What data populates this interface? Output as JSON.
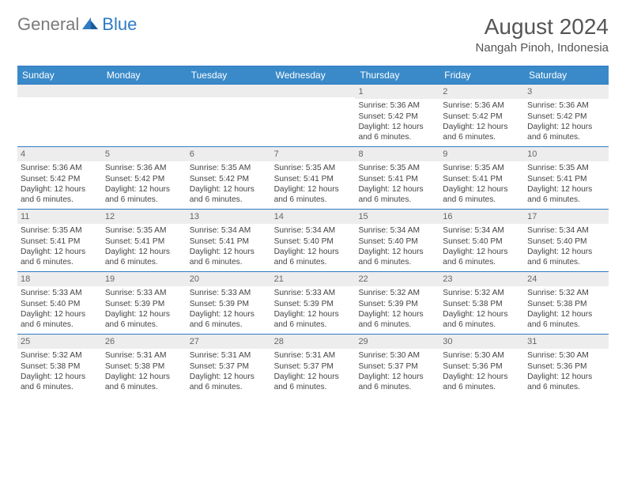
{
  "logo": {
    "text_general": "General",
    "text_blue": "Blue"
  },
  "header": {
    "month_title": "August 2024",
    "location": "Nangah Pinoh, Indonesia"
  },
  "colors": {
    "accent": "#3a8ac9",
    "accent_border": "#2f7bc4",
    "daynum_bg": "#ededed",
    "text": "#444444"
  },
  "weekdays": [
    "Sunday",
    "Monday",
    "Tuesday",
    "Wednesday",
    "Thursday",
    "Friday",
    "Saturday"
  ],
  "first_weekday_index": 4,
  "days": [
    {
      "n": "1",
      "sunrise": "5:36 AM",
      "sunset": "5:42 PM",
      "daylight": "12 hours and 6 minutes."
    },
    {
      "n": "2",
      "sunrise": "5:36 AM",
      "sunset": "5:42 PM",
      "daylight": "12 hours and 6 minutes."
    },
    {
      "n": "3",
      "sunrise": "5:36 AM",
      "sunset": "5:42 PM",
      "daylight": "12 hours and 6 minutes."
    },
    {
      "n": "4",
      "sunrise": "5:36 AM",
      "sunset": "5:42 PM",
      "daylight": "12 hours and 6 minutes."
    },
    {
      "n": "5",
      "sunrise": "5:36 AM",
      "sunset": "5:42 PM",
      "daylight": "12 hours and 6 minutes."
    },
    {
      "n": "6",
      "sunrise": "5:35 AM",
      "sunset": "5:42 PM",
      "daylight": "12 hours and 6 minutes."
    },
    {
      "n": "7",
      "sunrise": "5:35 AM",
      "sunset": "5:41 PM",
      "daylight": "12 hours and 6 minutes."
    },
    {
      "n": "8",
      "sunrise": "5:35 AM",
      "sunset": "5:41 PM",
      "daylight": "12 hours and 6 minutes."
    },
    {
      "n": "9",
      "sunrise": "5:35 AM",
      "sunset": "5:41 PM",
      "daylight": "12 hours and 6 minutes."
    },
    {
      "n": "10",
      "sunrise": "5:35 AM",
      "sunset": "5:41 PM",
      "daylight": "12 hours and 6 minutes."
    },
    {
      "n": "11",
      "sunrise": "5:35 AM",
      "sunset": "5:41 PM",
      "daylight": "12 hours and 6 minutes."
    },
    {
      "n": "12",
      "sunrise": "5:35 AM",
      "sunset": "5:41 PM",
      "daylight": "12 hours and 6 minutes."
    },
    {
      "n": "13",
      "sunrise": "5:34 AM",
      "sunset": "5:41 PM",
      "daylight": "12 hours and 6 minutes."
    },
    {
      "n": "14",
      "sunrise": "5:34 AM",
      "sunset": "5:40 PM",
      "daylight": "12 hours and 6 minutes."
    },
    {
      "n": "15",
      "sunrise": "5:34 AM",
      "sunset": "5:40 PM",
      "daylight": "12 hours and 6 minutes."
    },
    {
      "n": "16",
      "sunrise": "5:34 AM",
      "sunset": "5:40 PM",
      "daylight": "12 hours and 6 minutes."
    },
    {
      "n": "17",
      "sunrise": "5:34 AM",
      "sunset": "5:40 PM",
      "daylight": "12 hours and 6 minutes."
    },
    {
      "n": "18",
      "sunrise": "5:33 AM",
      "sunset": "5:40 PM",
      "daylight": "12 hours and 6 minutes."
    },
    {
      "n": "19",
      "sunrise": "5:33 AM",
      "sunset": "5:39 PM",
      "daylight": "12 hours and 6 minutes."
    },
    {
      "n": "20",
      "sunrise": "5:33 AM",
      "sunset": "5:39 PM",
      "daylight": "12 hours and 6 minutes."
    },
    {
      "n": "21",
      "sunrise": "5:33 AM",
      "sunset": "5:39 PM",
      "daylight": "12 hours and 6 minutes."
    },
    {
      "n": "22",
      "sunrise": "5:32 AM",
      "sunset": "5:39 PM",
      "daylight": "12 hours and 6 minutes."
    },
    {
      "n": "23",
      "sunrise": "5:32 AM",
      "sunset": "5:38 PM",
      "daylight": "12 hours and 6 minutes."
    },
    {
      "n": "24",
      "sunrise": "5:32 AM",
      "sunset": "5:38 PM",
      "daylight": "12 hours and 6 minutes."
    },
    {
      "n": "25",
      "sunrise": "5:32 AM",
      "sunset": "5:38 PM",
      "daylight": "12 hours and 6 minutes."
    },
    {
      "n": "26",
      "sunrise": "5:31 AM",
      "sunset": "5:38 PM",
      "daylight": "12 hours and 6 minutes."
    },
    {
      "n": "27",
      "sunrise": "5:31 AM",
      "sunset": "5:37 PM",
      "daylight": "12 hours and 6 minutes."
    },
    {
      "n": "28",
      "sunrise": "5:31 AM",
      "sunset": "5:37 PM",
      "daylight": "12 hours and 6 minutes."
    },
    {
      "n": "29",
      "sunrise": "5:30 AM",
      "sunset": "5:37 PM",
      "daylight": "12 hours and 6 minutes."
    },
    {
      "n": "30",
      "sunrise": "5:30 AM",
      "sunset": "5:36 PM",
      "daylight": "12 hours and 6 minutes."
    },
    {
      "n": "31",
      "sunrise": "5:30 AM",
      "sunset": "5:36 PM",
      "daylight": "12 hours and 6 minutes."
    }
  ],
  "labels": {
    "sunrise": "Sunrise:",
    "sunset": "Sunset:",
    "daylight": "Daylight:"
  }
}
